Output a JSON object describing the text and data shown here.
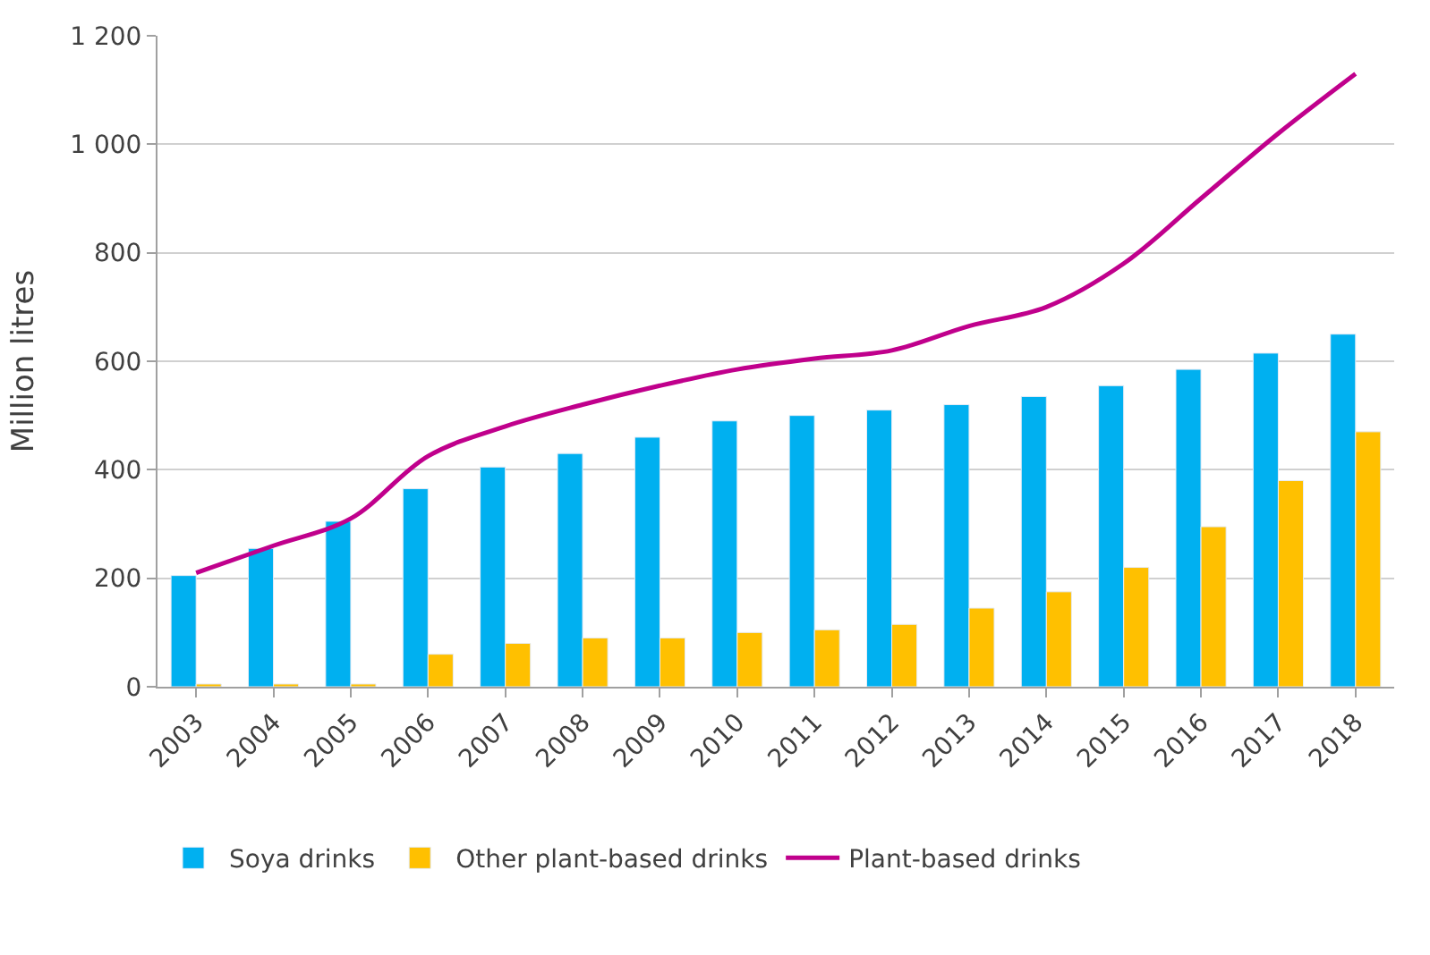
{
  "chart_data": {
    "type": "bar",
    "ylabel": "Million litres",
    "categories": [
      "2003",
      "2004",
      "2005",
      "2006",
      "2007",
      "2008",
      "2009",
      "2010",
      "2011",
      "2012",
      "2013",
      "2014",
      "2015",
      "2016",
      "2017",
      "2018"
    ],
    "series": [
      {
        "name": "Soya drinks",
        "color": "#00b0f0",
        "values": [
          205,
          255,
          305,
          365,
          405,
          430,
          460,
          490,
          500,
          510,
          520,
          535,
          555,
          585,
          615,
          650
        ]
      },
      {
        "name": "Other plant-based drinks",
        "color": "#ffc000",
        "values": [
          5,
          5,
          5,
          60,
          80,
          90,
          90,
          100,
          105,
          115,
          145,
          175,
          220,
          295,
          380,
          470
        ]
      },
      {
        "name": "Plant-based drinks",
        "type": "line",
        "color": "#c0008c",
        "values": [
          210,
          260,
          310,
          425,
          480,
          520,
          555,
          585,
          605,
          620,
          665,
          700,
          780,
          900,
          1020,
          1130
        ]
      }
    ],
    "ylim": [
      0,
      1200
    ],
    "yticks": [
      0,
      200,
      400,
      600,
      800,
      {
        "value": 1000,
        "label": "1 000"
      },
      {
        "value": 1200,
        "label": "1 200"
      }
    ],
    "grid": "y",
    "legend": "bottom",
    "marker": "none",
    "line_style": "solid"
  }
}
